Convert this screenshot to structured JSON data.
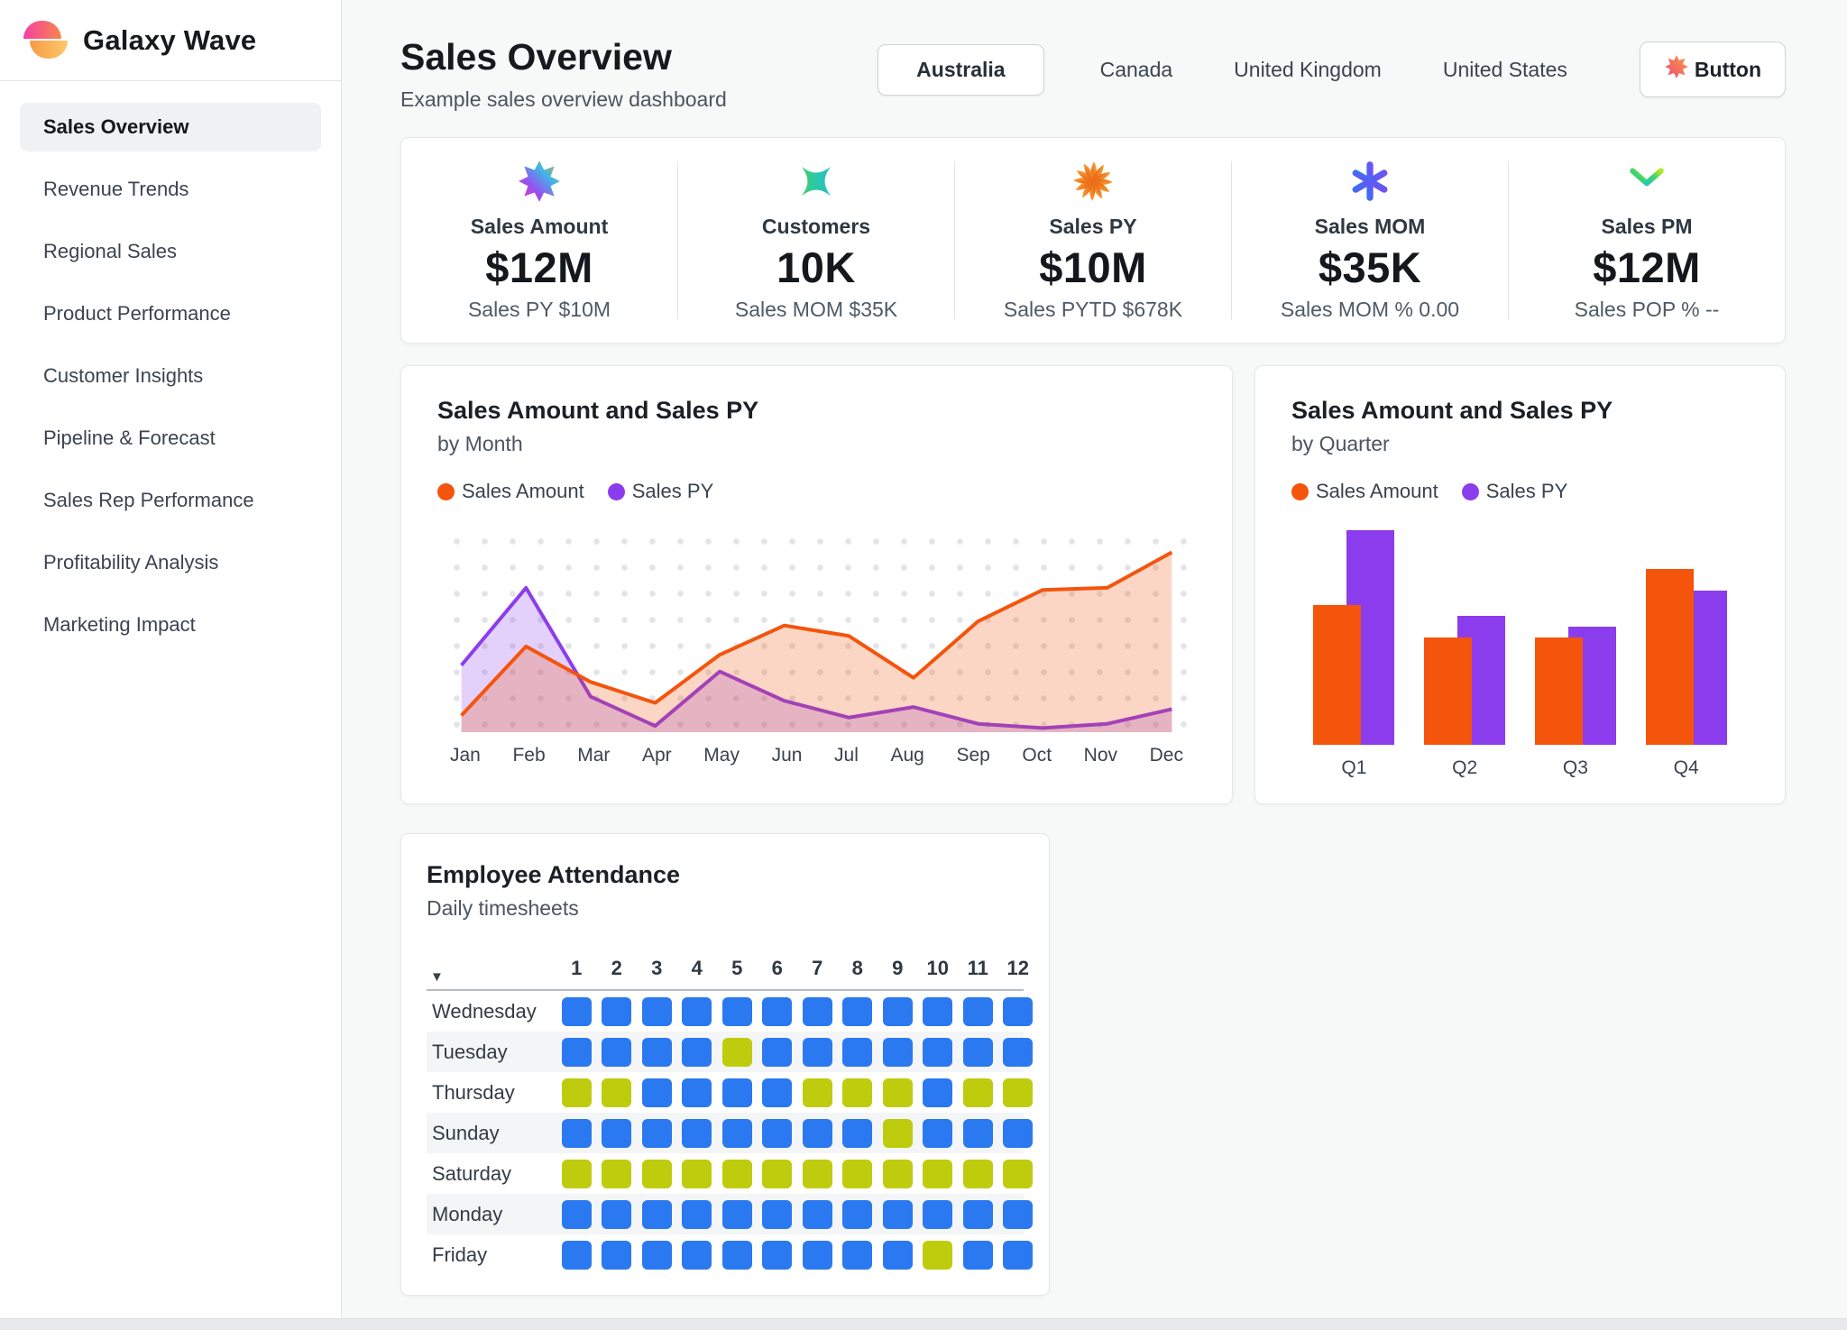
{
  "app": {
    "name": "Galaxy Wave"
  },
  "sidebar": {
    "items": [
      {
        "label": "Sales Overview",
        "active": true
      },
      {
        "label": "Revenue Trends",
        "active": false
      },
      {
        "label": "Regional Sales",
        "active": false
      },
      {
        "label": "Product Performance",
        "active": false
      },
      {
        "label": "Customer Insights",
        "active": false
      },
      {
        "label": "Pipeline & Forecast",
        "active": false
      },
      {
        "label": "Sales Rep Performance",
        "active": false
      },
      {
        "label": "Profitability Analysis",
        "active": false
      },
      {
        "label": "Marketing Impact",
        "active": false
      }
    ]
  },
  "header": {
    "title": "Sales Overview",
    "subtitle": "Example sales overview dashboard",
    "tabs": [
      {
        "label": "Australia",
        "active": true
      },
      {
        "label": "Canada",
        "active": false
      },
      {
        "label": "United Kingdom",
        "active": false
      },
      {
        "label": "United States",
        "active": false
      }
    ],
    "button_label": "Button"
  },
  "kpis": [
    {
      "label": "Sales Amount",
      "value": "$12M",
      "sub": "Sales PY $10M",
      "icon": "starburst-8-icon"
    },
    {
      "label": "Customers",
      "value": "10K",
      "sub": "Sales MOM $35K",
      "icon": "star-4-icon"
    },
    {
      "label": "Sales PY",
      "value": "$10M",
      "sub": "Sales PYTD $678K",
      "icon": "pinwheel-icon"
    },
    {
      "label": "Sales MOM",
      "value": "$35K",
      "sub": "Sales MOM % 0.00",
      "icon": "asterisk-6-icon"
    },
    {
      "label": "Sales PM",
      "value": "$12M",
      "sub": "Sales POP % --",
      "icon": "spoke-3-icon"
    }
  ],
  "colors": {
    "sales_amount_orange": "#F4540C",
    "sales_py_purple": "#8B3DED",
    "heat_blue": "#2B79F0",
    "heat_green": "#BFCC0E"
  },
  "chart_data": [
    {
      "type": "area",
      "title": "Sales Amount and Sales PY",
      "subtitle": "by Month",
      "categories": [
        "Jan",
        "Feb",
        "Mar",
        "Apr",
        "May",
        "Jun",
        "Jul",
        "Aug",
        "Sep",
        "Oct",
        "Nov",
        "Dec"
      ],
      "series": [
        {
          "name": "Sales Amount",
          "color": "#F4540C",
          "values": [
            8,
            41,
            24,
            14,
            37,
            51,
            46,
            26,
            53,
            68,
            69,
            86
          ]
        },
        {
          "name": "Sales PY",
          "color": "#8B3DED",
          "values": [
            32,
            69,
            17,
            3,
            29,
            15,
            7,
            12,
            4,
            2,
            4,
            11
          ]
        }
      ],
      "ylim": [
        0,
        100
      ],
      "grid": "dotted",
      "legend_position": "top"
    },
    {
      "type": "bar",
      "title": "Sales Amount and Sales PY",
      "subtitle": "by Quarter",
      "categories": [
        "Q1",
        "Q2",
        "Q3",
        "Q4"
      ],
      "series": [
        {
          "name": "Sales Amount",
          "color": "#F4540C",
          "values": [
            65,
            50,
            50,
            82
          ]
        },
        {
          "name": "Sales PY",
          "color": "#8B3DED",
          "values": [
            100,
            60,
            55,
            72
          ]
        }
      ],
      "ylim": [
        0,
        100
      ],
      "legend_position": "top"
    },
    {
      "type": "heatmap",
      "title": "Employee Attendance",
      "subtitle": "Daily timesheets",
      "columns": [
        "1",
        "2",
        "3",
        "4",
        "5",
        "6",
        "7",
        "8",
        "9",
        "10",
        "11",
        "12"
      ],
      "cell_colors": {
        "B": "#2B79F0",
        "G": "#BFCC0E"
      },
      "rows": [
        {
          "label": "Wednesday",
          "cells": "BBBBBBBBBBBB"
        },
        {
          "label": "Tuesday",
          "cells": "BBBBGBBBBBBB"
        },
        {
          "label": "Thursday",
          "cells": "GGBBBBGGGBGG"
        },
        {
          "label": "Sunday",
          "cells": "BBBBBBBBGBBB"
        },
        {
          "label": "Saturday",
          "cells": "GGGGGGGGGGGG"
        },
        {
          "label": "Monday",
          "cells": "BBBBBBBBBBBB"
        },
        {
          "label": "Friday",
          "cells": "BBBBBBBBBGBB"
        }
      ]
    }
  ]
}
